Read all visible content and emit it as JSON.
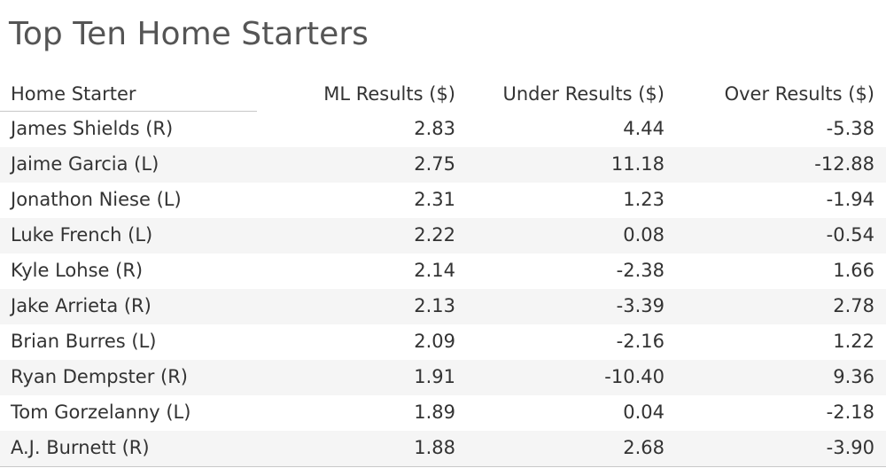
{
  "chart_data": {
    "type": "table",
    "title": "Top Ten Home Starters",
    "columns": [
      "Home Starter",
      "ML Results ($)",
      "Under Results ($)",
      "Over Results ($)"
    ],
    "rows": [
      [
        "James Shields (R)",
        "2.83",
        "4.44",
        "-5.38"
      ],
      [
        "Jaime Garcia (L)",
        "2.75",
        "11.18",
        "-12.88"
      ],
      [
        "Jonathon Niese (L)",
        "2.31",
        "1.23",
        "-1.94"
      ],
      [
        "Luke French (L)",
        "2.22",
        "0.08",
        "-0.54"
      ],
      [
        "Kyle Lohse (R)",
        "2.14",
        "-2.38",
        "1.66"
      ],
      [
        "Jake Arrieta (R)",
        "2.13",
        "-3.39",
        "2.78"
      ],
      [
        "Brian Burres (L)",
        "2.09",
        "-2.16",
        "1.22"
      ],
      [
        "Ryan Dempster (R)",
        "1.91",
        "-10.40",
        "9.36"
      ],
      [
        "Tom Gorzelanny (L)",
        "1.89",
        "0.04",
        "-2.18"
      ],
      [
        "A.J. Burnett (R)",
        "1.88",
        "2.68",
        "-3.90"
      ]
    ]
  }
}
